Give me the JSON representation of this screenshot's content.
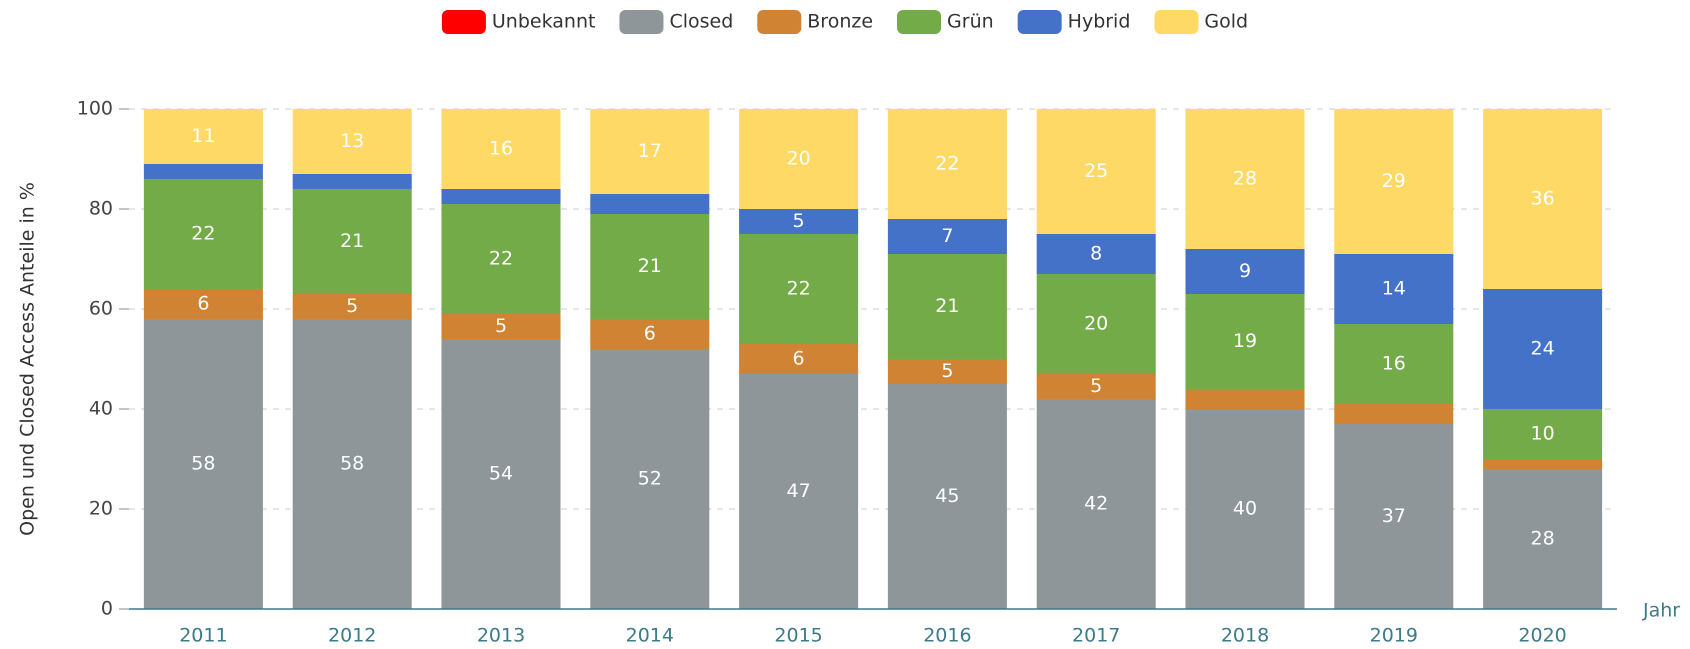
{
  "chart_data": {
    "type": "stacked_bar",
    "y_label": "Open und Closed Access Anteile in %",
    "x_label": "Jahr",
    "categories": [
      "2011",
      "2012",
      "2013",
      "2014",
      "2015",
      "2016",
      "2017",
      "2018",
      "2019",
      "2020"
    ],
    "series": [
      {
        "name": "Unbekannt",
        "color": "#ff0000",
        "values": [
          0,
          0,
          0,
          0,
          0,
          0,
          0,
          0,
          0,
          0
        ]
      },
      {
        "name": "Closed",
        "color": "#8e969a",
        "values": [
          58,
          58,
          54,
          52,
          47,
          45,
          42,
          40,
          37,
          28
        ]
      },
      {
        "name": "Bronze",
        "color": "#d08332",
        "values": [
          6,
          5,
          5,
          6,
          6,
          5,
          5,
          4,
          4,
          2
        ]
      },
      {
        "name": "Grün",
        "color": "#72ab47",
        "values": [
          22,
          21,
          22,
          21,
          22,
          21,
          20,
          19,
          16,
          10
        ]
      },
      {
        "name": "Hybrid",
        "color": "#4472c8",
        "values": [
          3,
          3,
          3,
          4,
          5,
          7,
          8,
          9,
          14,
          24
        ]
      },
      {
        "name": "Gold",
        "color": "#ffd966",
        "values": [
          11,
          13,
          16,
          17,
          20,
          22,
          25,
          28,
          29,
          36
        ]
      }
    ],
    "ylim": [
      0,
      100
    ],
    "yticks": [
      0,
      20,
      40,
      60,
      80,
      100
    ],
    "grid": true,
    "legend": "top"
  }
}
